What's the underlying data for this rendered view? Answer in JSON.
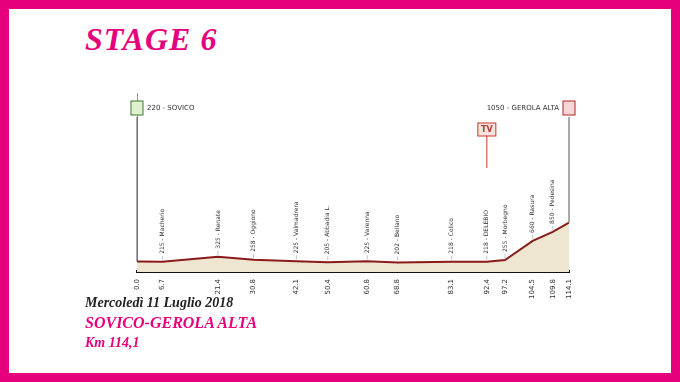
{
  "chart_data": {
    "type": "line",
    "title": "STAGE 6",
    "date": "Mercoledì 11 Luglio 2018",
    "route": "SOVICO-GEROLA ALTA",
    "distance_label": "Km 114,1",
    "x": [
      0,
      6.7,
      21.4,
      30.8,
      42.1,
      50.4,
      60.8,
      68.8,
      83.1,
      92.4,
      97.2,
      104.5,
      109.8,
      114.1
    ],
    "values": [
      220,
      215,
      325,
      258,
      225,
      205,
      225,
      202,
      218,
      218,
      255,
      660,
      850,
      1050
    ],
    "point_labels": [
      "220 - SOVICO",
      "215 - Macherio",
      "325 - Renate",
      "258 - Oggiono",
      "225 - Valmadrera",
      "205 - Abbadia L.",
      "225 - Varenna",
      "202 - Bellano",
      "218 - Colico",
      "218 - DELEBIO",
      "255 - Morbegno",
      "660 - Rasura",
      "850 - Pedesina",
      "1050 - GEROLA ALTA"
    ],
    "annotations": [
      {
        "x": 92.4,
        "label": "TV"
      }
    ],
    "color": "#8b1a1a",
    "xlim": [
      0,
      114.1
    ],
    "xticks": [
      {
        "value": 0,
        "label": "0.0"
      },
      6.7,
      21.4,
      30.8,
      42.1,
      50.4,
      60.8,
      68.8,
      83.1,
      92.4,
      97.2,
      104.5,
      109.8,
      114.1
    ],
    "ylim": [
      0,
      3800
    ],
    "yticks": [],
    "tick_labels": "x",
    "grid": false
  }
}
